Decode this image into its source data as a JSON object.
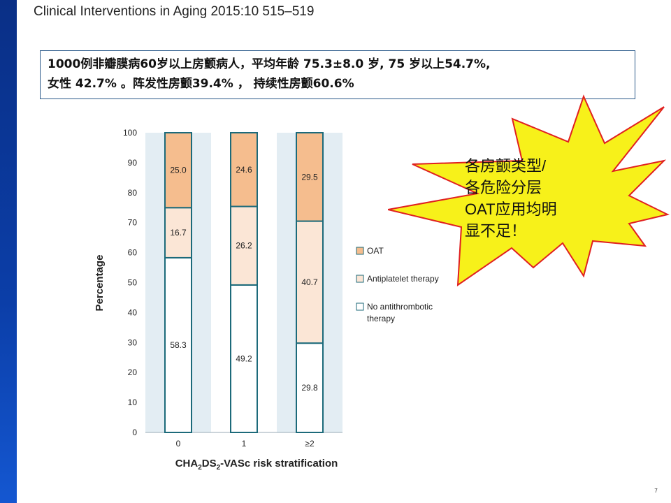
{
  "slide": {
    "title": "Clinical Interventions in Aging 2015:10 515–519",
    "info_line1": "1000例非瓣膜病60岁以上房颤病人，平均年龄 75.3±8.0 岁, 75 岁以上54.7%,",
    "info_line2": "女性 42.7% 。阵发性房颤39.4% ， 持续性房颤60.6%",
    "callout_lines": [
      "各房颤类型/",
      "各危险分层",
      "OAT应用均明",
      "显不足！"
    ],
    "page_number": "7"
  },
  "colors": {
    "oat": "#f5bd8e",
    "antiplatelet": "#fbe6d6",
    "none": "#ffffff",
    "bar_border": "#1c6a7a",
    "panel": "#e3edf3",
    "burst_fill": "#f7f11a",
    "burst_stroke": "#e02020"
  },
  "chart_data": {
    "type": "bar",
    "stacked": true,
    "categories": [
      "0",
      "1",
      "≥2"
    ],
    "series": [
      {
        "name": "No antithrombotic therapy",
        "values": [
          58.3,
          49.2,
          29.8
        ]
      },
      {
        "name": "Antiplatelet therapy",
        "values": [
          16.7,
          26.2,
          40.7
        ]
      },
      {
        "name": "OAT",
        "values": [
          25.0,
          24.6,
          29.5
        ]
      }
    ],
    "value_labels": [
      [
        "58.3",
        "49.2",
        "29.8"
      ],
      [
        "16.7",
        "26.2",
        "40.7"
      ],
      [
        "25.0",
        "24.6",
        "29.5"
      ]
    ],
    "ylim": [
      0,
      100
    ],
    "yticks": [
      "0",
      "10",
      "20",
      "30",
      "40",
      "50",
      "60",
      "70",
      "80",
      "90",
      "100"
    ],
    "ylabel": "Percentage",
    "xlabel_parts": [
      "CHA",
      "2",
      "DS",
      "2",
      "-VASc risk stratification"
    ],
    "legend_position": "right"
  }
}
